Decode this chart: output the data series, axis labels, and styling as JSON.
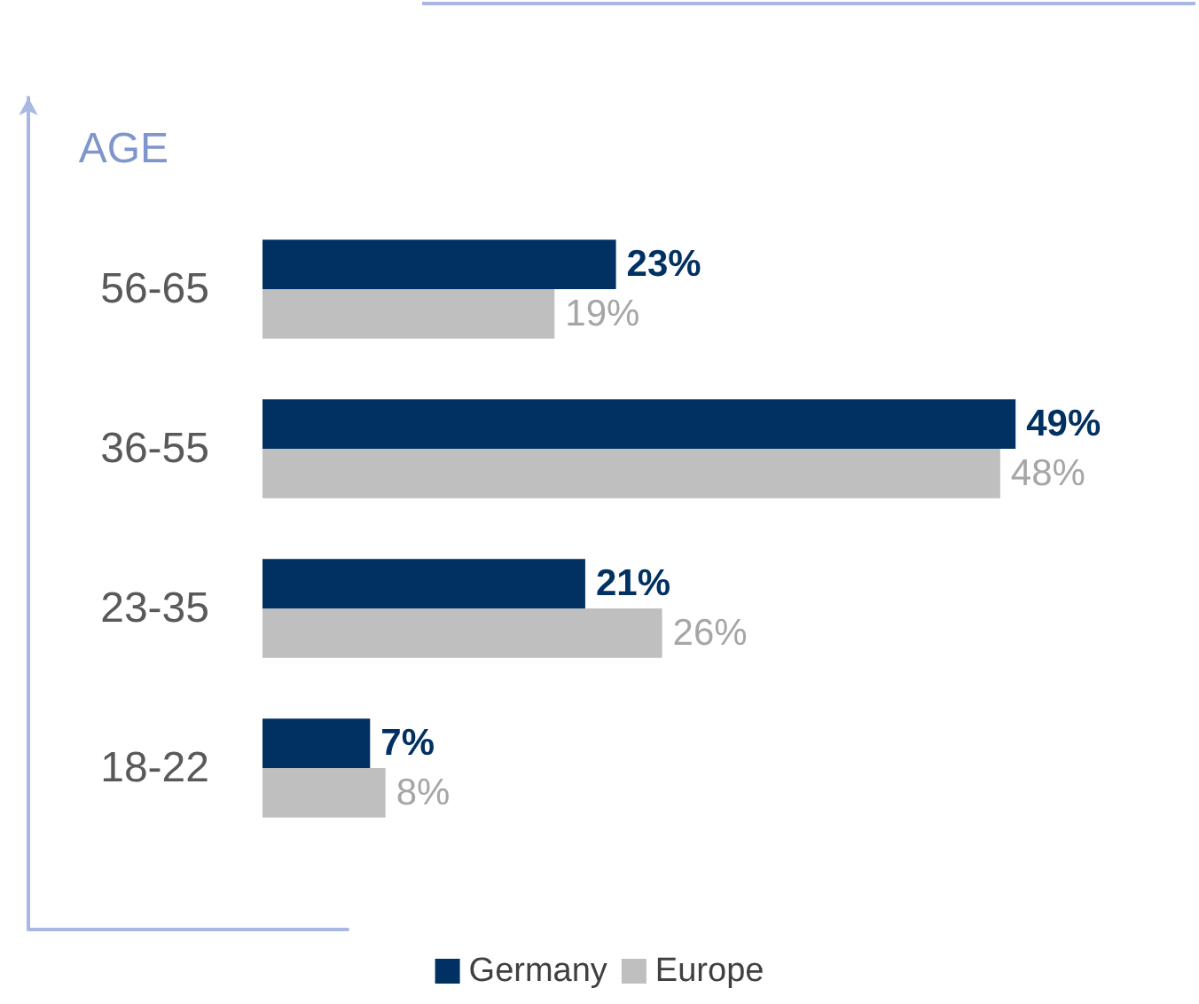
{
  "chart_data": {
    "type": "bar",
    "orientation": "horizontal",
    "ylabel": "AGE",
    "categories": [
      "56-65",
      "36-55",
      "23-35",
      "18-22"
    ],
    "series": [
      {
        "name": "Germany",
        "color": "#003162",
        "values": [
          23,
          49,
          21,
          7
        ],
        "value_labels": [
          "23%",
          "49%",
          "21%",
          "7%"
        ]
      },
      {
        "name": "Europe",
        "color": "#bfbfbf",
        "values": [
          19,
          48,
          26,
          8
        ],
        "value_labels": [
          "19%",
          "48%",
          "26%",
          "8%"
        ]
      }
    ],
    "legend": "bottom",
    "grid": false,
    "tick_labels": "y"
  }
}
